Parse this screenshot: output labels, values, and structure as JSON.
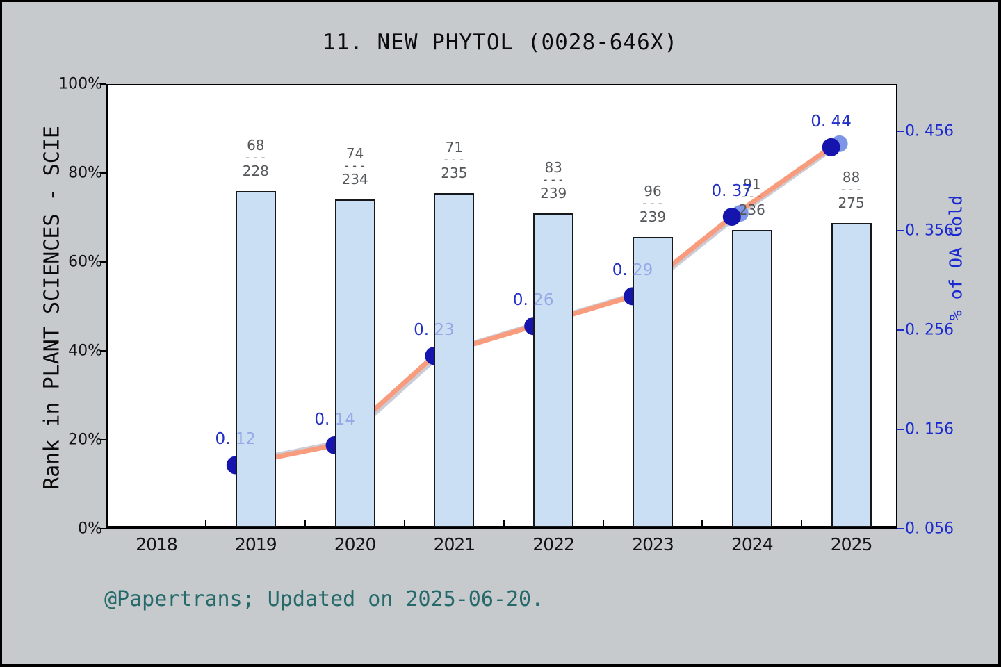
{
  "title": "11. NEW PHYTOL (0028-646X)",
  "footer": "@Papertrans; Updated on 2025-06-20.",
  "left_axis": {
    "label": "Rank in PLANT SCIENCES - SCIE",
    "ticks": [
      "0%",
      "20%",
      "40%",
      "60%",
      "80%",
      "100%"
    ]
  },
  "right_axis": {
    "label": "% of OA Gold",
    "ticks": [
      "0. 056",
      "0. 156",
      "0. 256",
      "0. 356",
      "0. 456"
    ]
  },
  "x_axis": {
    "years": [
      "2018",
      "2019",
      "2020",
      "2021",
      "2022",
      "2023",
      "2024",
      "2025"
    ]
  },
  "chart_data": {
    "type": "bar+line",
    "title": "11. NEW PHYTOL (0028-646X)",
    "categories": [
      "2019",
      "2020",
      "2021",
      "2022",
      "2023",
      "2024",
      "2025"
    ],
    "bars": {
      "name": "Rank in PLANT SCIENCES - SCIE",
      "rank_labels": [
        {
          "num": "68",
          "den": "228"
        },
        {
          "num": "74",
          "den": "234"
        },
        {
          "num": "71",
          "den": "235"
        },
        {
          "num": "83",
          "den": "239"
        },
        {
          "num": "96",
          "den": "239"
        },
        {
          "num": "91",
          "den": "236"
        },
        {
          "num": "88",
          "den": "275"
        }
      ],
      "heights_pct": [
        76.0,
        74.0,
        75.5,
        71.0,
        65.6,
        67.2,
        68.7
      ],
      "ylim": [
        0,
        100
      ],
      "yticks_pct": [
        0,
        20,
        40,
        60,
        80,
        100
      ]
    },
    "line": {
      "name": "% of OA Gold",
      "values": [
        0.12,
        0.14,
        0.23,
        0.26,
        0.29,
        0.37,
        0.44
      ],
      "labels": [
        "0. 12",
        "0. 14",
        "0. 23",
        "0. 26",
        "0. 29",
        "0. 37",
        "0. 44"
      ],
      "ylim": [
        0.056,
        0.504
      ],
      "ytick_values": [
        0.056,
        0.156,
        0.256,
        0.356,
        0.456
      ]
    },
    "legend": "none",
    "grid": false
  },
  "colors": {
    "background": "#c6cacd",
    "plot_background": "#ffffff",
    "bar_fill": "#cbdff4",
    "bar_border": "#16181b",
    "line": "#f89c7d",
    "line_shadow": "#cbccd6",
    "marker": "#1515ad",
    "marker_shadow": "#7c95e6",
    "point_label": "#2130c6",
    "point_label_dim": "#97a8e6",
    "fraction_text": "#54575a",
    "right_axis_blue": "#1b2ad0",
    "footer_teal": "#26696a",
    "axis_black": "#000000"
  }
}
